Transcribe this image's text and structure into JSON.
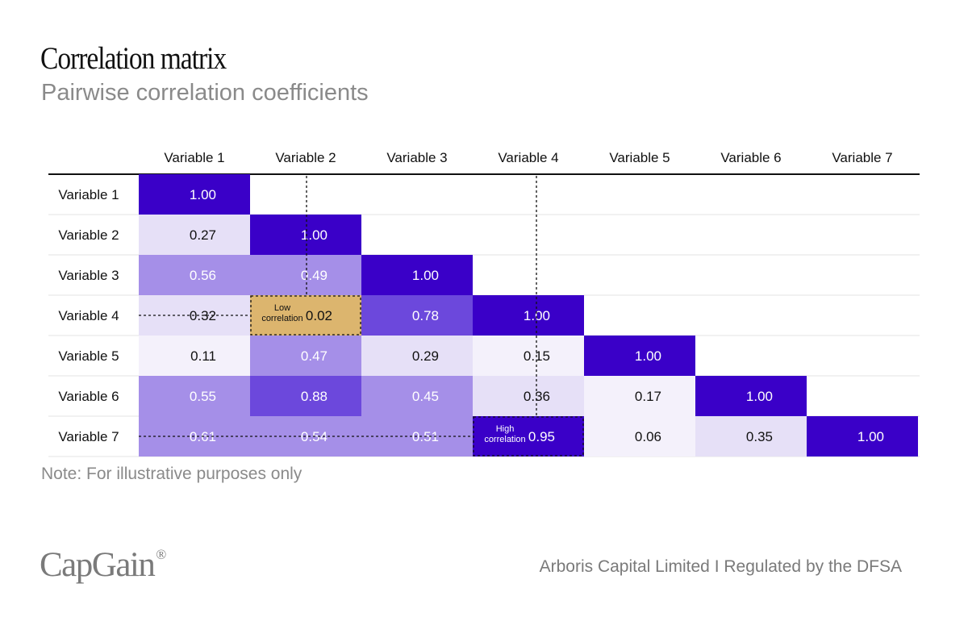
{
  "header": {
    "title": "Correlation matrix",
    "subtitle": "Pairwise correlation coefficients"
  },
  "colors": {
    "diagonal": "#3a00c8",
    "strong": "#6c48dc",
    "medium": "#a58fe8",
    "light": "#e6e0f7",
    "faint": "#f4f1fb",
    "low_highlight": "#dcb56e",
    "divider": "#111111",
    "grid": "#e3e3e3"
  },
  "chart_data": {
    "type": "heatmap",
    "title": "Correlation matrix",
    "subtitle": "Pairwise correlation coefficients",
    "row_labels": [
      "Variable 1",
      "Variable 2",
      "Variable 3",
      "Variable 4",
      "Variable 5",
      "Variable 6",
      "Variable 7"
    ],
    "col_labels": [
      "Variable 1",
      "Variable 2",
      "Variable 3",
      "Variable 4",
      "Variable 5",
      "Variable 6",
      "Variable 7"
    ],
    "values": [
      [
        "1.00"
      ],
      [
        "0.27",
        "1.00"
      ],
      [
        "0.56",
        "0.49",
        "1.00"
      ],
      [
        "0.32",
        "0.02",
        "0.78",
        "1.00"
      ],
      [
        "0.11",
        "0.47",
        "0.29",
        "0.15",
        "1.00"
      ],
      [
        "0.55",
        "0.88",
        "0.45",
        "0.36",
        "0.17",
        "1.00"
      ],
      [
        "0.61",
        "0.54",
        "0.51",
        "0.95",
        "0.06",
        "0.35",
        "1.00"
      ]
    ],
    "annotations": [
      {
        "row": 3,
        "col": 1,
        "label": "Low correlation",
        "lines": [
          "Low",
          "correlation"
        ]
      },
      {
        "row": 6,
        "col": 3,
        "label": "High correlation",
        "lines": [
          "High",
          "correlation"
        ]
      }
    ]
  },
  "footer": {
    "note": "Note: For illustrative purposes only",
    "brand": "CapGain",
    "brand_mark": "®",
    "disclaimer": "Arboris Capital Limited I Regulated by the DFSA"
  }
}
